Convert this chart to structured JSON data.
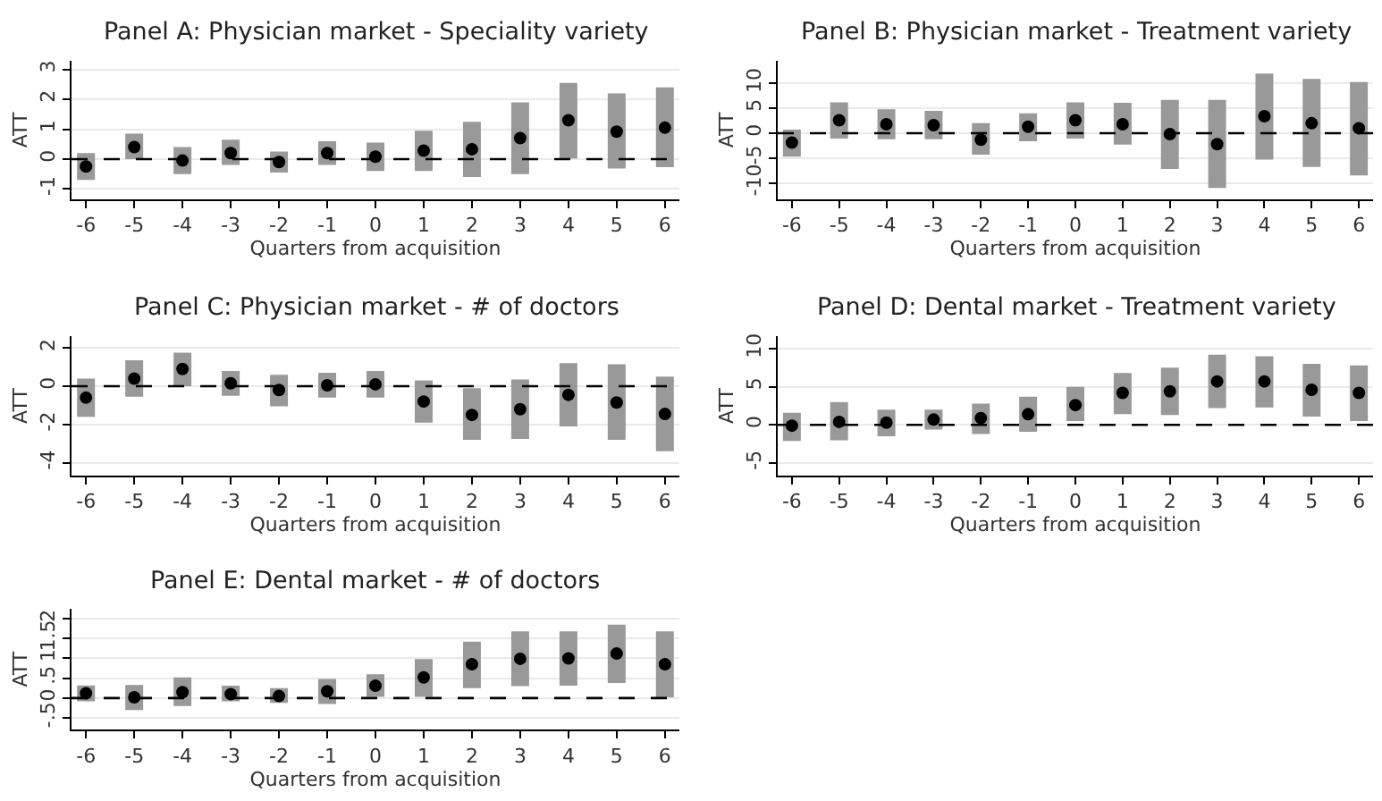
{
  "chart_data": [
    {
      "type": "scatter",
      "title": "Panel A: Physician market - Speciality variety",
      "xlabel": "Quarters from acquisition",
      "ylabel": "ATT",
      "x": [
        -6,
        -5,
        -4,
        -3,
        -2,
        -1,
        0,
        1,
        2,
        3,
        4,
        5,
        6
      ],
      "xlim": [
        -6.3,
        6.3
      ],
      "xticks": [
        -6,
        -5,
        -4,
        -3,
        -2,
        -1,
        0,
        1,
        2,
        3,
        4,
        5,
        6
      ],
      "ylim": [
        -1.35,
        3.3
      ],
      "yticks": [
        -1,
        0,
        1,
        2,
        3
      ],
      "grid": "y",
      "marker": "circle",
      "series": [
        {
          "color": "#000000",
          "values": [
            -0.25,
            0.4,
            -0.05,
            0.2,
            -0.1,
            0.2,
            0.08,
            0.28,
            0.33,
            0.7,
            1.3,
            0.92,
            1.05
          ],
          "errors": [
            [
              -0.7,
              0.2
            ],
            [
              0,
              0.85
            ],
            [
              -0.5,
              0.4
            ],
            [
              -0.2,
              0.65
            ],
            [
              -0.45,
              0.25
            ],
            [
              -0.2,
              0.6
            ],
            [
              -0.4,
              0.55
            ],
            [
              -0.4,
              0.95
            ],
            [
              -0.6,
              1.25
            ],
            [
              -0.5,
              1.9
            ],
            [
              0.02,
              2.55
            ],
            [
              -0.32,
              2.2
            ],
            [
              -0.27,
              2.4
            ]
          ]
        }
      ],
      "ref_lines": [
        {
          "axis": "y",
          "value": 0,
          "color": "#000000",
          "line_style": "dashed"
        }
      ]
    },
    {
      "type": "scatter",
      "title": "Panel B: Physician market - Treatment variety",
      "xlabel": "Quarters from acquisition",
      "ylabel": "ATT",
      "x": [
        -6,
        -5,
        -4,
        -3,
        -2,
        -1,
        0,
        1,
        2,
        3,
        4,
        5,
        6
      ],
      "xlim": [
        -6.3,
        6.3
      ],
      "xticks": [
        -6,
        -5,
        -4,
        -3,
        -2,
        -1,
        0,
        1,
        2,
        3,
        4,
        5,
        6
      ],
      "ylim": [
        -13.3,
        14.6
      ],
      "yticks": [
        -10,
        -5,
        0,
        5,
        10
      ],
      "grid": "y",
      "marker": "circle",
      "series": [
        {
          "color": "#000000",
          "values": [
            -1.9,
            2.6,
            1.8,
            1.6,
            -1.3,
            1.3,
            2.6,
            1.8,
            -0.2,
            -2.2,
            3.4,
            2.0,
            1.0
          ],
          "errors": [
            [
              -4.7,
              0.7
            ],
            [
              -1.1,
              6.2
            ],
            [
              -1.2,
              4.8
            ],
            [
              -1.2,
              4.5
            ],
            [
              -4.3,
              2.0
            ],
            [
              -1.6,
              4.0
            ],
            [
              -1.1,
              6.2
            ],
            [
              -2.3,
              6.1
            ],
            [
              -7.2,
              6.7
            ],
            [
              -11,
              6.7
            ],
            [
              -5.3,
              12
            ],
            [
              -6.8,
              10.9
            ],
            [
              -8.5,
              10.3
            ]
          ]
        }
      ],
      "ref_lines": [
        {
          "axis": "y",
          "value": 0,
          "color": "#000000",
          "line_style": "dashed"
        }
      ]
    },
    {
      "type": "scatter",
      "title": "Panel C: Physician market - # of doctors",
      "xlabel": "Quarters from acquisition",
      "ylabel": "ATT",
      "x": [
        -6,
        -5,
        -4,
        -3,
        -2,
        -1,
        0,
        1,
        2,
        3,
        4,
        5,
        6
      ],
      "xlim": [
        -6.3,
        6.3
      ],
      "xticks": [
        -6,
        -5,
        -4,
        -3,
        -2,
        -1,
        0,
        1,
        2,
        3,
        4,
        5,
        6
      ],
      "ylim": [
        -4.65,
        2.6
      ],
      "yticks": [
        -4,
        -2,
        0,
        2
      ],
      "grid": "y",
      "marker": "circle",
      "series": [
        {
          "color": "#000000",
          "values": [
            -0.6,
            0.4,
            0.9,
            0.15,
            -0.2,
            0.05,
            0.1,
            -0.8,
            -1.5,
            -1.2,
            -0.45,
            -0.85,
            -1.45
          ],
          "errors": [
            [
              -1.6,
              0.4
            ],
            [
              -0.55,
              1.35
            ],
            [
              0.0,
              1.75
            ],
            [
              -0.5,
              0.8
            ],
            [
              -1.05,
              0.6
            ],
            [
              -0.6,
              0.7
            ],
            [
              -0.6,
              0.8
            ],
            [
              -1.9,
              0.3
            ],
            [
              -2.8,
              -0.1
            ],
            [
              -2.75,
              0.35
            ],
            [
              -2.1,
              1.2
            ],
            [
              -2.8,
              1.15
            ],
            [
              -3.4,
              0.5
            ]
          ]
        }
      ],
      "ref_lines": [
        {
          "axis": "y",
          "value": 0,
          "color": "#000000",
          "line_style": "dashed"
        }
      ]
    },
    {
      "type": "scatter",
      "title": "Panel D: Dental market - Treatment variety",
      "xlabel": "Quarters from acquisition",
      "ylabel": "ATT",
      "x": [
        -6,
        -5,
        -4,
        -3,
        -2,
        -1,
        0,
        1,
        2,
        3,
        4,
        5,
        6
      ],
      "xlim": [
        -6.3,
        6.3
      ],
      "xticks": [
        -6,
        -5,
        -4,
        -3,
        -2,
        -1,
        0,
        1,
        2,
        3,
        4,
        5,
        6
      ],
      "ylim": [
        -6.6,
        11.6
      ],
      "yticks": [
        -5,
        0,
        5,
        10
      ],
      "grid": "y",
      "marker": "circle",
      "series": [
        {
          "color": "#000000",
          "values": [
            -0.1,
            0.4,
            0.3,
            0.7,
            0.9,
            1.4,
            2.6,
            4.2,
            4.4,
            5.7,
            5.7,
            4.6,
            4.2
          ],
          "errors": [
            [
              -2.1,
              1.6
            ],
            [
              -2.0,
              3.0
            ],
            [
              -1.5,
              2.0
            ],
            [
              -0.6,
              2.0
            ],
            [
              -1.2,
              2.8
            ],
            [
              -0.9,
              3.7
            ],
            [
              0.5,
              5.0
            ],
            [
              1.4,
              6.8
            ],
            [
              1.3,
              7.5
            ],
            [
              2.2,
              9.2
            ],
            [
              2.3,
              9.0
            ],
            [
              1.1,
              8.0
            ],
            [
              0.5,
              7.8
            ]
          ]
        }
      ],
      "ref_lines": [
        {
          "axis": "y",
          "value": 0,
          "color": "#000000",
          "line_style": "dashed"
        }
      ]
    },
    {
      "type": "scatter",
      "title": "Panel E: Dental market - # of doctors",
      "xlabel": "Quarters from acquisition",
      "ylabel": "ATT",
      "x": [
        -6,
        -5,
        -4,
        -3,
        -2,
        -1,
        0,
        1,
        2,
        3,
        4,
        5,
        6
      ],
      "xlim": [
        -6.3,
        6.3
      ],
      "xticks": [
        -6,
        -5,
        -4,
        -3,
        -2,
        -1,
        0,
        1,
        2,
        3,
        4,
        5,
        6
      ],
      "ylim": [
        -0.8,
        2.25
      ],
      "yticks": [
        {
          "value": -0.5,
          "label": "-.5"
        },
        0,
        {
          "value": 0.5,
          "label": ".5"
        },
        1,
        1.5,
        2
      ],
      "grid": "y",
      "marker": "circle",
      "series": [
        {
          "color": "#000000",
          "values": [
            0.12,
            0.02,
            0.15,
            0.1,
            0.05,
            0.17,
            0.31,
            0.52,
            0.85,
            0.99,
            1.0,
            1.12,
            0.85
          ],
          "errors": [
            [
              -0.08,
              0.32
            ],
            [
              -0.3,
              0.33
            ],
            [
              -0.2,
              0.52
            ],
            [
              -0.08,
              0.31
            ],
            [
              -0.12,
              0.25
            ],
            [
              -0.15,
              0.48
            ],
            [
              0.03,
              0.6
            ],
            [
              0.03,
              0.98
            ],
            [
              0.25,
              1.42
            ],
            [
              0.3,
              1.68
            ],
            [
              0.31,
              1.68
            ],
            [
              0.38,
              1.85
            ],
            [
              0.02,
              1.68
            ]
          ]
        }
      ],
      "ref_lines": [
        {
          "axis": "y",
          "value": 0,
          "color": "#000000",
          "line_style": "dashed"
        }
      ]
    }
  ]
}
